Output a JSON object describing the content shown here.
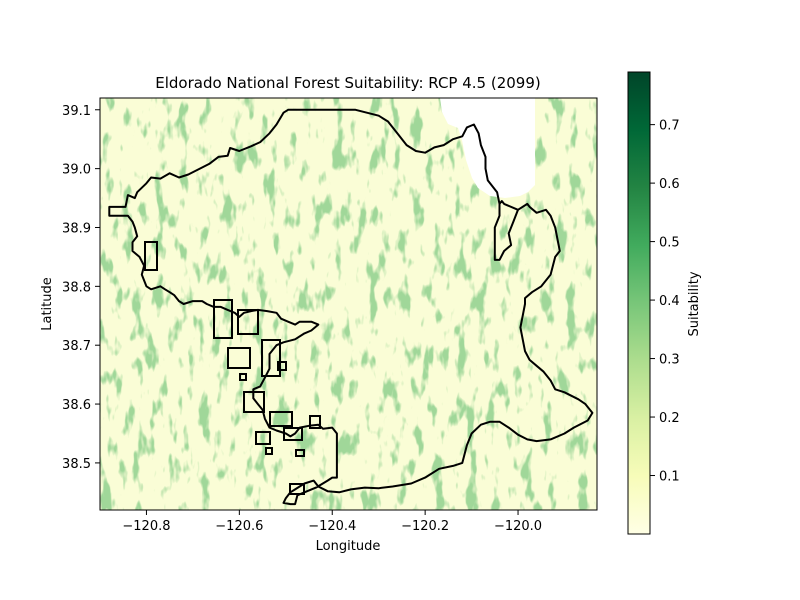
{
  "chart_data": {
    "type": "heatmap",
    "title": "Eldorado National Forest Suitability: RCP 4.5 (2099)",
    "xlabel": "Longitude",
    "ylabel": "Latitude",
    "xlim": [
      -120.9,
      -119.83
    ],
    "ylim": [
      38.42,
      39.12
    ],
    "x_ticks": [
      -120.8,
      -120.6,
      -120.4,
      -120.2,
      -120.0
    ],
    "x_tick_labels": [
      "−120.8",
      "−120.6",
      "−120.4",
      "−120.2",
      "−120.0"
    ],
    "y_ticks": [
      38.5,
      38.6,
      38.7,
      38.8,
      38.9,
      39.0,
      39.1
    ],
    "y_tick_labels": [
      "38.5",
      "38.6",
      "38.7",
      "38.8",
      "38.9",
      "39.0",
      "39.1"
    ],
    "colorbar": {
      "label": "Suitability",
      "colormap": "YlGn",
      "range": [
        0.0,
        0.79
      ],
      "ticks": [
        0.1,
        0.2,
        0.3,
        0.4,
        0.5,
        0.6,
        0.7
      ],
      "tick_labels": [
        "0.1",
        "0.2",
        "0.3",
        "0.4",
        "0.5",
        "0.6",
        "0.7"
      ],
      "colors": [
        "#ffffe5",
        "#f7fcb9",
        "#d9f0a3",
        "#addd8e",
        "#78c679",
        "#41ab5d",
        "#238443",
        "#006837",
        "#004529"
      ]
    },
    "grid": false,
    "no_data_region": "Lake Tahoe",
    "boundary": {
      "color": "#000000",
      "outer": [
        [
          -120.88,
          38.935
        ],
        [
          -120.845,
          38.935
        ],
        [
          -120.84,
          38.955
        ],
        [
          -120.825,
          38.95
        ],
        [
          -120.82,
          38.96
        ],
        [
          -120.8,
          38.975
        ],
        [
          -120.79,
          38.985
        ],
        [
          -120.77,
          38.983
        ],
        [
          -120.75,
          38.992
        ],
        [
          -120.73,
          38.985
        ],
        [
          -120.71,
          38.99
        ],
        [
          -120.685,
          39.0
        ],
        [
          -120.665,
          39.008
        ],
        [
          -120.645,
          39.02
        ],
        [
          -120.625,
          39.022
        ],
        [
          -120.62,
          39.035
        ],
        [
          -120.6,
          39.03
        ],
        [
          -120.575,
          39.038
        ],
        [
          -120.555,
          39.045
        ],
        [
          -120.535,
          39.06
        ],
        [
          -120.52,
          39.075
        ],
        [
          -120.505,
          39.095
        ],
        [
          -120.495,
          39.1
        ],
        [
          -120.45,
          39.1
        ],
        [
          -120.4,
          39.1
        ],
        [
          -120.35,
          39.1
        ],
        [
          -120.3,
          39.09
        ],
        [
          -120.28,
          39.08
        ],
        [
          -120.26,
          39.06
        ],
        [
          -120.24,
          39.04
        ],
        [
          -120.22,
          39.03
        ],
        [
          -120.2,
          39.027
        ],
        [
          -120.18,
          39.036
        ],
        [
          -120.16,
          39.04
        ],
        [
          -120.14,
          39.05
        ],
        [
          -120.12,
          39.055
        ],
        [
          -120.11,
          39.07
        ],
        [
          -120.095,
          39.075
        ],
        [
          -120.085,
          39.06
        ],
        [
          -120.08,
          39.04
        ],
        [
          -120.07,
          39.02
        ],
        [
          -120.07,
          39.0
        ],
        [
          -120.065,
          38.98
        ],
        [
          -120.045,
          38.96
        ],
        [
          -120.04,
          38.94
        ],
        [
          -120.035,
          38.945
        ],
        [
          -120.03,
          38.94
        ],
        [
          -120.0,
          38.93
        ],
        [
          -119.98,
          38.94
        ],
        [
          -119.975,
          38.935
        ],
        [
          -119.96,
          38.925
        ],
        [
          -119.94,
          38.93
        ],
        [
          -119.93,
          38.92
        ],
        [
          -119.92,
          38.9
        ],
        [
          -119.915,
          38.88
        ],
        [
          -119.91,
          38.86
        ],
        [
          -119.92,
          38.85
        ],
        [
          -119.93,
          38.82
        ],
        [
          -119.95,
          38.8
        ],
        [
          -119.97,
          38.79
        ],
        [
          -119.985,
          38.78
        ],
        [
          -119.985,
          38.77
        ],
        [
          -119.99,
          38.75
        ],
        [
          -119.995,
          38.73
        ],
        [
          -119.99,
          38.71
        ],
        [
          -119.985,
          38.69
        ],
        [
          -119.975,
          38.675
        ],
        [
          -119.96,
          38.665
        ],
        [
          -119.945,
          38.655
        ],
        [
          -119.93,
          38.64
        ],
        [
          -119.92,
          38.625
        ],
        [
          -119.9,
          38.62
        ],
        [
          -119.87,
          38.608
        ],
        [
          -119.855,
          38.6
        ],
        [
          -119.84,
          38.585
        ],
        [
          -119.85,
          38.572
        ],
        [
          -119.88,
          38.56
        ],
        [
          -119.9,
          38.55
        ],
        [
          -119.93,
          38.54
        ],
        [
          -119.96,
          38.537
        ],
        [
          -119.98,
          38.54
        ],
        [
          -120.0,
          38.548
        ],
        [
          -120.02,
          38.56
        ],
        [
          -120.04,
          38.57
        ],
        [
          -120.06,
          38.57
        ],
        [
          -120.08,
          38.565
        ],
        [
          -120.1,
          38.55
        ],
        [
          -120.11,
          38.53
        ],
        [
          -120.12,
          38.5
        ],
        [
          -120.14,
          38.495
        ],
        [
          -120.17,
          38.49
        ],
        [
          -120.2,
          38.475
        ],
        [
          -120.23,
          38.465
        ],
        [
          -120.27,
          38.46
        ],
        [
          -120.3,
          38.457
        ],
        [
          -120.33,
          38.458
        ],
        [
          -120.36,
          38.455
        ],
        [
          -120.385,
          38.45
        ],
        [
          -120.41,
          38.452
        ],
        [
          -120.43,
          38.46
        ],
        [
          -120.44,
          38.47
        ],
        [
          -120.46,
          38.465
        ],
        [
          -120.48,
          38.455
        ],
        [
          -120.49,
          38.45
        ],
        [
          -120.5,
          38.44
        ],
        [
          -120.505,
          38.432
        ],
        [
          -120.49,
          38.43
        ],
        [
          -120.48,
          38.43
        ],
        [
          -120.475,
          38.445
        ],
        [
          -120.46,
          38.45
        ],
        [
          -120.435,
          38.458
        ],
        [
          -120.41,
          38.47
        ],
        [
          -120.4,
          38.475
        ],
        [
          -120.39,
          38.475
        ],
        [
          -120.39,
          38.51
        ],
        [
          -120.39,
          38.55
        ],
        [
          -120.4,
          38.56
        ],
        [
          -120.42,
          38.558
        ],
        [
          -120.43,
          38.565
        ],
        [
          -120.45,
          38.563
        ],
        [
          -120.47,
          38.56
        ],
        [
          -120.48,
          38.55
        ],
        [
          -120.49,
          38.545
        ],
        [
          -120.5,
          38.55
        ],
        [
          -120.52,
          38.555
        ],
        [
          -120.535,
          38.56
        ],
        [
          -120.545,
          38.575
        ],
        [
          -120.55,
          38.59
        ],
        [
          -120.56,
          38.6
        ],
        [
          -120.57,
          38.61
        ],
        [
          -120.57,
          38.625
        ],
        [
          -120.555,
          38.63
        ],
        [
          -120.545,
          38.645
        ],
        [
          -120.535,
          38.66
        ],
        [
          -120.535,
          38.685
        ],
        [
          -120.52,
          38.7
        ],
        [
          -120.505,
          38.705
        ],
        [
          -120.48,
          38.71
        ],
        [
          -120.46,
          38.72
        ],
        [
          -120.445,
          38.725
        ],
        [
          -120.43,
          38.735
        ],
        [
          -120.445,
          38.74
        ],
        [
          -120.47,
          38.74
        ],
        [
          -120.48,
          38.735
        ],
        [
          -120.495,
          38.74
        ],
        [
          -120.51,
          38.745
        ],
        [
          -120.52,
          38.755
        ],
        [
          -120.54,
          38.758
        ],
        [
          -120.56,
          38.76
        ],
        [
          -120.575,
          38.758
        ],
        [
          -120.59,
          38.755
        ],
        [
          -120.6,
          38.748
        ],
        [
          -120.61,
          38.755
        ],
        [
          -120.625,
          38.76
        ],
        [
          -120.64,
          38.765
        ],
        [
          -120.655,
          38.765
        ],
        [
          -120.67,
          38.77
        ],
        [
          -120.68,
          38.775
        ],
        [
          -120.7,
          38.775
        ],
        [
          -120.72,
          38.77
        ],
        [
          -120.73,
          38.775
        ],
        [
          -120.74,
          38.785
        ],
        [
          -120.75,
          38.79
        ],
        [
          -120.76,
          38.795
        ],
        [
          -120.77,
          38.8
        ],
        [
          -120.79,
          38.795
        ],
        [
          -120.8,
          38.8
        ],
        [
          -120.81,
          38.82
        ],
        [
          -120.805,
          38.835
        ],
        [
          -120.815,
          38.85
        ],
        [
          -120.83,
          38.86
        ],
        [
          -120.83,
          38.875
        ],
        [
          -120.82,
          38.885
        ],
        [
          -120.825,
          38.9
        ],
        [
          -120.83,
          38.91
        ],
        [
          -120.84,
          38.92
        ],
        [
          -120.88,
          38.92
        ],
        [
          -120.88,
          38.935
        ]
      ],
      "inner": [
        [
          -120.0,
          38.93
        ],
        [
          -120.01,
          38.91
        ],
        [
          -120.02,
          38.89
        ],
        [
          -120.015,
          38.87
        ],
        [
          -120.03,
          38.86
        ],
        [
          -120.04,
          38.845
        ],
        [
          -120.05,
          38.845
        ],
        [
          -120.05,
          38.9
        ],
        [
          -120.04,
          38.92
        ],
        [
          -120.04,
          38.94
        ]
      ]
    }
  }
}
